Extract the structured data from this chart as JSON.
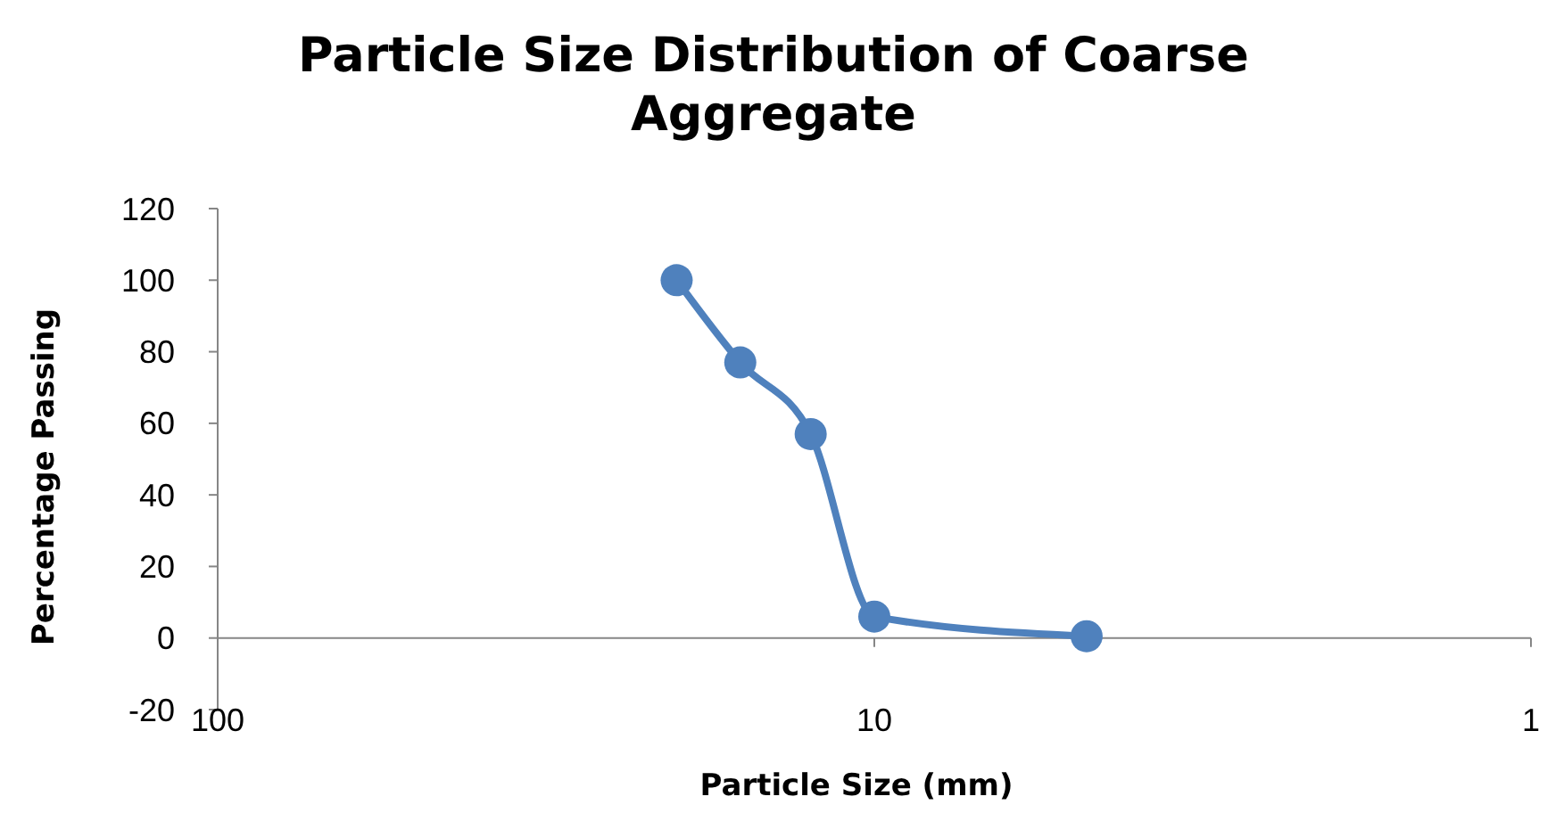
{
  "chart_data": {
    "type": "line",
    "title": "Particle Size Distribution of Coarse Aggregate",
    "xlabel": "Particle Size (mm)",
    "ylabel": "Percentage Passing",
    "x": [
      20,
      16,
      12.5,
      10,
      4.75
    ],
    "series": [
      {
        "color": "#4f81bd",
        "values": [
          100,
          77,
          57,
          6,
          0.5
        ]
      }
    ],
    "log": "x",
    "xlim": [
      100,
      1
    ],
    "xticks": [
      100,
      10,
      1
    ],
    "ylim": [
      -20,
      120
    ],
    "yticks": [
      -20,
      0,
      20,
      40,
      60,
      80,
      100,
      120
    ],
    "marker": "circle",
    "line_style": "solid"
  }
}
